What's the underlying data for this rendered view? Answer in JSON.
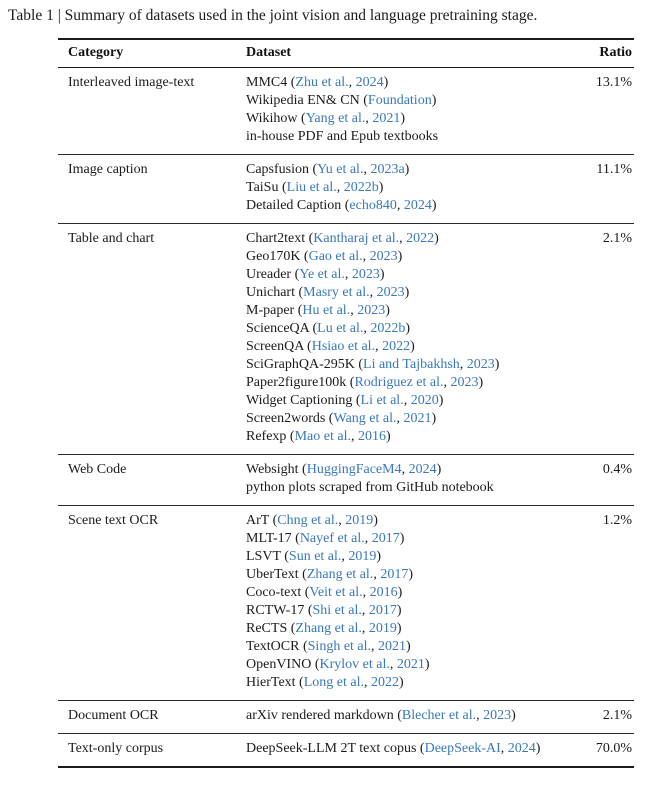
{
  "caption": "Table 1 | Summary of datasets used in the joint vision and language pretraining stage.",
  "colors": {
    "link_blue": "#3878bb",
    "text": "#1b1b1b",
    "rule": "#1a1a1a",
    "background": "#ffffff"
  },
  "table": {
    "headers": [
      "Category",
      "Dataset",
      "Ratio"
    ],
    "sections": [
      {
        "category": "Interleaved image-text",
        "ratio": "13.1%",
        "rows": [
          {
            "segments": [
              {
                "t": "MMC4 (",
                "link": false
              },
              {
                "t": "Zhu et al.",
                "link": true
              },
              {
                "t": ", ",
                "link": false
              },
              {
                "t": "2024",
                "link": true
              },
              {
                "t": ")",
                "link": false
              }
            ]
          },
          {
            "segments": [
              {
                "t": "Wikipedia EN& CN (",
                "link": false
              },
              {
                "t": "Foundation",
                "link": true
              },
              {
                "t": ")",
                "link": false
              }
            ]
          },
          {
            "segments": [
              {
                "t": "Wikihow (",
                "link": false
              },
              {
                "t": "Yang et al.",
                "link": true
              },
              {
                "t": ", ",
                "link": false
              },
              {
                "t": "2021",
                "link": true
              },
              {
                "t": ")",
                "link": false
              }
            ]
          },
          {
            "segments": [
              {
                "t": "in-house PDF and Epub textbooks",
                "link": false
              }
            ]
          }
        ]
      },
      {
        "category": "Image caption",
        "ratio": "11.1%",
        "rows": [
          {
            "segments": [
              {
                "t": "Capsfusion (",
                "link": false
              },
              {
                "t": "Yu et al.",
                "link": true
              },
              {
                "t": ", ",
                "link": false
              },
              {
                "t": "2023a",
                "link": true
              },
              {
                "t": ")",
                "link": false
              }
            ]
          },
          {
            "segments": [
              {
                "t": "TaiSu (",
                "link": false
              },
              {
                "t": "Liu et al.",
                "link": true
              },
              {
                "t": ", ",
                "link": false
              },
              {
                "t": "2022b",
                "link": true
              },
              {
                "t": ")",
                "link": false
              }
            ]
          },
          {
            "segments": [
              {
                "t": "Detailed Caption (",
                "link": false
              },
              {
                "t": "echo840",
                "link": true
              },
              {
                "t": ", ",
                "link": false
              },
              {
                "t": "2024",
                "link": true
              },
              {
                "t": ")",
                "link": false
              }
            ]
          }
        ]
      },
      {
        "category": "Table and chart",
        "ratio": "2.1%",
        "rows": [
          {
            "segments": [
              {
                "t": "Chart2text (",
                "link": false
              },
              {
                "t": "Kantharaj et al.",
                "link": true
              },
              {
                "t": ", ",
                "link": false
              },
              {
                "t": "2022",
                "link": true
              },
              {
                "t": ")",
                "link": false
              }
            ]
          },
          {
            "segments": [
              {
                "t": "Geo170K (",
                "link": false
              },
              {
                "t": "Gao et al.",
                "link": true
              },
              {
                "t": ", ",
                "link": false
              },
              {
                "t": "2023",
                "link": true
              },
              {
                "t": ")",
                "link": false
              }
            ]
          },
          {
            "segments": [
              {
                "t": "Ureader (",
                "link": false
              },
              {
                "t": "Ye et al.",
                "link": true
              },
              {
                "t": ", ",
                "link": false
              },
              {
                "t": "2023",
                "link": true
              },
              {
                "t": ")",
                "link": false
              }
            ]
          },
          {
            "segments": [
              {
                "t": "Unichart (",
                "link": false
              },
              {
                "t": "Masry et al.",
                "link": true
              },
              {
                "t": ", ",
                "link": false
              },
              {
                "t": "2023",
                "link": true
              },
              {
                "t": ")",
                "link": false
              }
            ]
          },
          {
            "segments": [
              {
                "t": "M-paper (",
                "link": false
              },
              {
                "t": "Hu et al.",
                "link": true
              },
              {
                "t": ", ",
                "link": false
              },
              {
                "t": "2023",
                "link": true
              },
              {
                "t": ")",
                "link": false
              }
            ]
          },
          {
            "segments": [
              {
                "t": "ScienceQA (",
                "link": false
              },
              {
                "t": "Lu et al.",
                "link": true
              },
              {
                "t": ", ",
                "link": false
              },
              {
                "t": "2022b",
                "link": true
              },
              {
                "t": ")",
                "link": false
              }
            ]
          },
          {
            "segments": [
              {
                "t": "ScreenQA (",
                "link": false
              },
              {
                "t": "Hsiao et al.",
                "link": true
              },
              {
                "t": ", ",
                "link": false
              },
              {
                "t": "2022",
                "link": true
              },
              {
                "t": ")",
                "link": false
              }
            ]
          },
          {
            "segments": [
              {
                "t": "SciGraphQA-295K (",
                "link": false
              },
              {
                "t": "Li and Tajbakhsh",
                "link": true
              },
              {
                "t": ", ",
                "link": false
              },
              {
                "t": "2023",
                "link": true
              },
              {
                "t": ")",
                "link": false
              }
            ]
          },
          {
            "segments": [
              {
                "t": "Paper2figure100k (",
                "link": false
              },
              {
                "t": "Rodriguez et al.",
                "link": true
              },
              {
                "t": ", ",
                "link": false
              },
              {
                "t": "2023",
                "link": true
              },
              {
                "t": ")",
                "link": false
              }
            ]
          },
          {
            "segments": [
              {
                "t": "Widget Captioning (",
                "link": false
              },
              {
                "t": "Li et al.",
                "link": true
              },
              {
                "t": ", ",
                "link": false
              },
              {
                "t": "2020",
                "link": true
              },
              {
                "t": ")",
                "link": false
              }
            ]
          },
          {
            "segments": [
              {
                "t": "Screen2words (",
                "link": false
              },
              {
                "t": "Wang et al.",
                "link": true
              },
              {
                "t": ", ",
                "link": false
              },
              {
                "t": "2021",
                "link": true
              },
              {
                "t": ")",
                "link": false
              }
            ]
          },
          {
            "segments": [
              {
                "t": "Refexp (",
                "link": false
              },
              {
                "t": "Mao et al.",
                "link": true
              },
              {
                "t": ", ",
                "link": false
              },
              {
                "t": "2016",
                "link": true
              },
              {
                "t": ")",
                "link": false
              }
            ]
          }
        ]
      },
      {
        "category": "Web Code",
        "ratio": "0.4%",
        "rows": [
          {
            "segments": [
              {
                "t": "Websight (",
                "link": false
              },
              {
                "t": "HuggingFaceM4",
                "link": true
              },
              {
                "t": ", ",
                "link": false
              },
              {
                "t": "2024",
                "link": true
              },
              {
                "t": ")",
                "link": false
              }
            ]
          },
          {
            "segments": [
              {
                "t": "python plots scraped from GitHub notebook",
                "link": false
              }
            ]
          }
        ]
      },
      {
        "category": "Scene text OCR",
        "ratio": "1.2%",
        "rows": [
          {
            "segments": [
              {
                "t": "ArT (",
                "link": false
              },
              {
                "t": "Chng et al.",
                "link": true
              },
              {
                "t": ", ",
                "link": false
              },
              {
                "t": "2019",
                "link": true
              },
              {
                "t": ")",
                "link": false
              }
            ]
          },
          {
            "segments": [
              {
                "t": "MLT-17 (",
                "link": false
              },
              {
                "t": "Nayef et al.",
                "link": true
              },
              {
                "t": ", ",
                "link": false
              },
              {
                "t": "2017",
                "link": true
              },
              {
                "t": ")",
                "link": false
              }
            ]
          },
          {
            "segments": [
              {
                "t": "LSVT (",
                "link": false
              },
              {
                "t": "Sun et al.",
                "link": true
              },
              {
                "t": ", ",
                "link": false
              },
              {
                "t": "2019",
                "link": true
              },
              {
                "t": ")",
                "link": false
              }
            ]
          },
          {
            "segments": [
              {
                "t": "UberText (",
                "link": false
              },
              {
                "t": "Zhang et al.",
                "link": true
              },
              {
                "t": ", ",
                "link": false
              },
              {
                "t": "2017",
                "link": true
              },
              {
                "t": ")",
                "link": false
              }
            ]
          },
          {
            "segments": [
              {
                "t": "Coco-text (",
                "link": false
              },
              {
                "t": "Veit et al.",
                "link": true
              },
              {
                "t": ", ",
                "link": false
              },
              {
                "t": "2016",
                "link": true
              },
              {
                "t": ")",
                "link": false
              }
            ]
          },
          {
            "segments": [
              {
                "t": "RCTW-17 (",
                "link": false
              },
              {
                "t": "Shi et al.",
                "link": true
              },
              {
                "t": ", ",
                "link": false
              },
              {
                "t": "2017",
                "link": true
              },
              {
                "t": ")",
                "link": false
              }
            ]
          },
          {
            "segments": [
              {
                "t": "ReCTS (",
                "link": false
              },
              {
                "t": "Zhang et al.",
                "link": true
              },
              {
                "t": ", ",
                "link": false
              },
              {
                "t": "2019",
                "link": true
              },
              {
                "t": ")",
                "link": false
              }
            ]
          },
          {
            "segments": [
              {
                "t": "TextOCR (",
                "link": false
              },
              {
                "t": "Singh et al.",
                "link": true
              },
              {
                "t": ", ",
                "link": false
              },
              {
                "t": "2021",
                "link": true
              },
              {
                "t": ")",
                "link": false
              }
            ]
          },
          {
            "segments": [
              {
                "t": "OpenVINO (",
                "link": false
              },
              {
                "t": "Krylov et al.",
                "link": true
              },
              {
                "t": ", ",
                "link": false
              },
              {
                "t": "2021",
                "link": true
              },
              {
                "t": ")",
                "link": false
              }
            ]
          },
          {
            "segments": [
              {
                "t": "HierText (",
                "link": false
              },
              {
                "t": "Long et al.",
                "link": true
              },
              {
                "t": ", ",
                "link": false
              },
              {
                "t": "2022",
                "link": true
              },
              {
                "t": ")",
                "link": false
              }
            ]
          }
        ]
      },
      {
        "category": "Document OCR",
        "ratio": "2.1%",
        "rows": [
          {
            "segments": [
              {
                "t": "arXiv rendered markdown (",
                "link": false
              },
              {
                "t": "Blecher et al.",
                "link": true
              },
              {
                "t": ", ",
                "link": false
              },
              {
                "t": "2023",
                "link": true
              },
              {
                "t": ")",
                "link": false
              }
            ]
          }
        ]
      },
      {
        "category": "Text-only corpus",
        "ratio": "70.0%",
        "rows": [
          {
            "segments": [
              {
                "t": "DeepSeek-LLM 2T text copus (",
                "link": false
              },
              {
                "t": "DeepSeek-AI",
                "link": true
              },
              {
                "t": ", ",
                "link": false
              },
              {
                "t": "2024",
                "link": true
              },
              {
                "t": ")",
                "link": false
              }
            ]
          }
        ]
      }
    ]
  }
}
